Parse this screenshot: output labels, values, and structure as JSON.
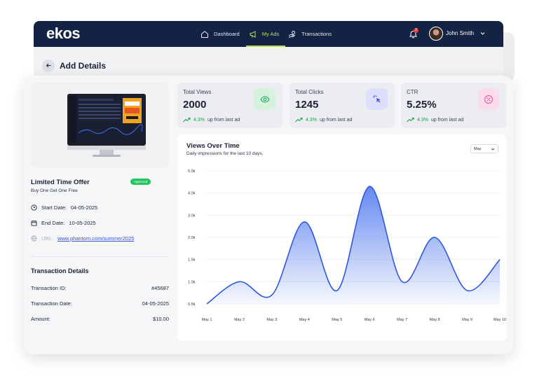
{
  "header": {
    "logo": "ekos",
    "nav": [
      {
        "label": "Dashboard",
        "icon": "home-icon",
        "active": false
      },
      {
        "label": "My Ads",
        "icon": "megaphone-icon",
        "active": true
      },
      {
        "label": "Transactions",
        "icon": "hand-coin-icon",
        "active": false
      }
    ],
    "notification_count": "2",
    "user_name": "John Smith"
  },
  "page": {
    "title": "Add Details"
  },
  "ad": {
    "title": "Limited Time Offer",
    "status": "Approved",
    "subtitle": "Buy One Get One Free",
    "start_label": "Start Date:",
    "start_date": "04-05-2025",
    "end_label": "End Date:",
    "end_date": "10-05-2025",
    "url_label": "URL:",
    "url": "www.phantom.com/summer2025"
  },
  "transaction": {
    "heading": "Transaction Details",
    "rows": [
      {
        "label": "Transaction ID:",
        "value": "#45687"
      },
      {
        "label": "Transaction Date:",
        "value": "04-05-2025"
      },
      {
        "label": "Amount:",
        "value": "$10.00"
      }
    ]
  },
  "stats": [
    {
      "label": "Total Views",
      "value": "2000",
      "pct": "4.3%",
      "trend": "up from last ad",
      "icon": "eye-icon",
      "color": "#d4f2dc",
      "icon_color": "#22a559"
    },
    {
      "label": "Total Clicks",
      "value": "1245",
      "pct": "4.3%",
      "trend": "up from last ad",
      "icon": "cursor-click-icon",
      "color": "#dde0fb",
      "icon_color": "#4f5bd5"
    },
    {
      "label": "CTR",
      "value": "5.25%",
      "pct": "4.3%",
      "trend": "up from last ad",
      "icon": "percent-icon",
      "color": "#fbdcec",
      "icon_color": "#e0508f"
    }
  ],
  "chart": {
    "title": "Views Over Time",
    "subtitle": "Daily impressions for the last 10 days.",
    "select_value": "May"
  },
  "chart_data": {
    "type": "area",
    "x": [
      "May 1",
      "May 2",
      "May 3",
      "May 4",
      "May 5",
      "May 6",
      "May 7",
      "May 8",
      "May 9",
      "May 10"
    ],
    "y_ticks": [
      "5.0k",
      "4.0k",
      "3.0k",
      "2.0k",
      "1.5k",
      "1.0k",
      "0.5k"
    ],
    "series": [
      {
        "values": [
          500,
          1000,
          700,
          2700,
          800,
          4300,
          1000,
          2000,
          800,
          1500
        ]
      }
    ],
    "line_color": "#2f57e0",
    "fill_color": "#4a74ee",
    "grid": true
  }
}
